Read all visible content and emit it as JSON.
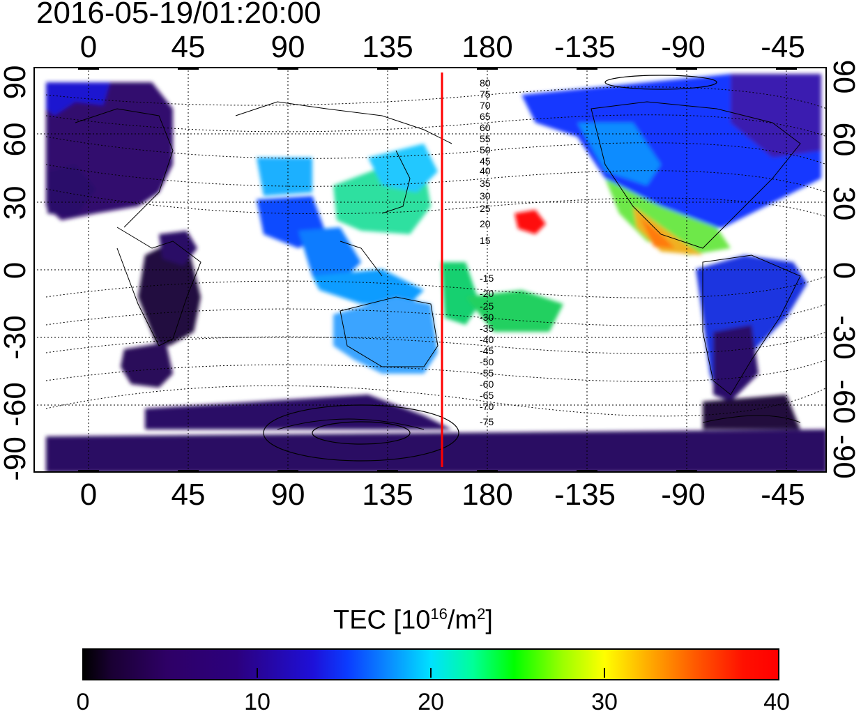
{
  "timestamp": "2016-05-19/01:20:00",
  "map": {
    "lon_ticks": [
      "0",
      "45",
      "90",
      "135",
      "180",
      "-135",
      "-90",
      "-45"
    ],
    "lat_ticks": [
      "90",
      "60",
      "30",
      "0",
      "-30",
      "-60",
      "-90"
    ],
    "contour_labels_north": [
      "80",
      "75",
      "70",
      "65",
      "60",
      "55",
      "50",
      "45",
      "40",
      "35",
      "30",
      "25",
      "20",
      "15"
    ],
    "contour_labels_south": [
      "-15",
      "-20",
      "-25",
      "-30",
      "-35",
      "-40",
      "-45",
      "-50",
      "-55",
      "-60",
      "-65",
      "-70",
      "-75"
    ],
    "reference_line_color": "#ff0000",
    "reference_longitude": 160
  },
  "colorbar": {
    "title_main": "TEC  [10",
    "title_sup1": "16",
    "title_mid": "/m",
    "title_sup2": "2",
    "title_end": "]",
    "tick_labels": [
      "0",
      "10",
      "20",
      "30",
      "40"
    ],
    "min": 0,
    "max": 40
  }
}
